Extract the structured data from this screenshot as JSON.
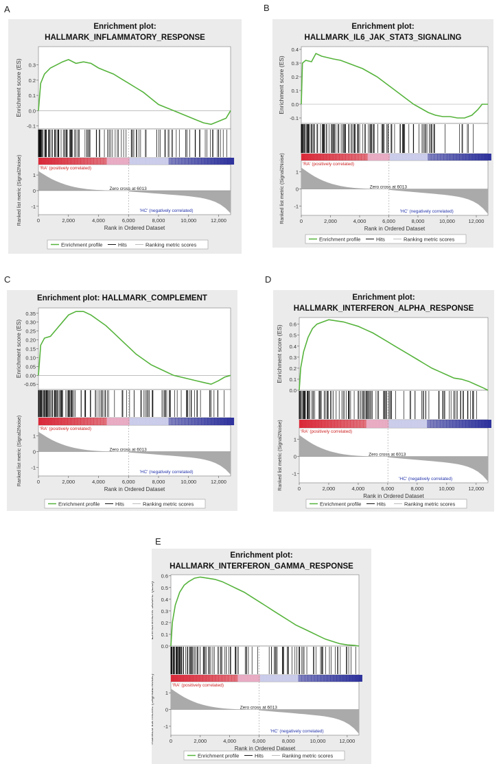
{
  "colors": {
    "es_line": "#55b33b",
    "hits": "#111111",
    "metric_fill": "#aaaaaa",
    "pos_label": "#cc2222",
    "neg_label": "#2233aa",
    "bar_red": "#d92a3a",
    "bar_pink": "#e8a5bf",
    "bar_light_blue": "#c6c8ea",
    "bar_blue": "#2b2f9a",
    "panel_bg": "#ebebeb",
    "plot_bg": "#ffffff"
  },
  "legend": {
    "enrichment_profile": "Enrichment profile",
    "hits": "Hits",
    "ranking_metric": "Ranking metric scores"
  },
  "common": {
    "es_ylabel": "Enrichment score (ES)",
    "metric_ylabel": "Ranked list metric (Signal2Noise)",
    "xlabel": "Rank in Ordered Dataset",
    "pos_label": "'RA' (positively correlated)",
    "neg_label": "'HC' (negatively correlated)",
    "zero_cross": "Zero cross at 6013",
    "x_ticks": [
      "0",
      "2,000",
      "4,000",
      "6,000",
      "8,000",
      "10,000",
      "12,000"
    ],
    "metric_ticks": [
      "1",
      "0",
      "-1"
    ]
  },
  "chart_data": [
    {
      "panel_letter": "A",
      "type": "line",
      "title_lines": [
        "Enrichment plot:",
        "HALLMARK_INFLAMMATORY_RESPONSE"
      ],
      "xlim": [
        0,
        12800
      ],
      "ylim": [
        -0.12,
        0.42
      ],
      "y_ticks": [
        0.3,
        0.2,
        0.1,
        0.0,
        -0.1
      ],
      "y_tick_labels": [
        "0.3",
        "0.2",
        "0.1",
        "0.0",
        "-0.1"
      ],
      "series": [
        {
          "name": "Enrichment profile",
          "points": [
            [
              0,
              0.0
            ],
            [
              150,
              0.18
            ],
            [
              400,
              0.24
            ],
            [
              800,
              0.28
            ],
            [
              1200,
              0.3
            ],
            [
              1600,
              0.32
            ],
            [
              2000,
              0.335
            ],
            [
              2500,
              0.31
            ],
            [
              3000,
              0.32
            ],
            [
              3500,
              0.31
            ],
            [
              4000,
              0.28
            ],
            [
              4500,
              0.26
            ],
            [
              5000,
              0.24
            ],
            [
              5500,
              0.21
            ],
            [
              6000,
              0.18
            ],
            [
              6500,
              0.15
            ],
            [
              7000,
              0.12
            ],
            [
              7500,
              0.08
            ],
            [
              8000,
              0.04
            ],
            [
              8500,
              0.02
            ],
            [
              9000,
              0.0
            ],
            [
              9500,
              -0.02
            ],
            [
              10000,
              -0.04
            ],
            [
              10500,
              -0.06
            ],
            [
              11000,
              -0.08
            ],
            [
              11500,
              -0.09
            ],
            [
              12000,
              -0.07
            ],
            [
              12500,
              -0.05
            ],
            [
              12800,
              0.0
            ]
          ]
        }
      ],
      "metric_ylim": [
        -1.6,
        1.6
      ],
      "zero_cross_rank": 6013
    },
    {
      "panel_letter": "B",
      "type": "line",
      "title_lines": [
        "Enrichment plot:",
        "HALLMARK_IL6_JAK_STAT3_SIGNALING"
      ],
      "xlim": [
        0,
        12800
      ],
      "ylim": [
        -0.14,
        0.42
      ],
      "y_ticks": [
        0.4,
        0.3,
        0.2,
        0.1,
        0.0,
        -0.1
      ],
      "y_tick_labels": [
        "0.4",
        "0.3",
        "0.2",
        "0.1",
        "0.0",
        "-0.1"
      ],
      "series": [
        {
          "name": "Enrichment profile",
          "points": [
            [
              0,
              0.0
            ],
            [
              80,
              0.3
            ],
            [
              300,
              0.32
            ],
            [
              700,
              0.31
            ],
            [
              1000,
              0.37
            ],
            [
              1400,
              0.35
            ],
            [
              1800,
              0.34
            ],
            [
              2200,
              0.33
            ],
            [
              2700,
              0.32
            ],
            [
              3200,
              0.3
            ],
            [
              3700,
              0.28
            ],
            [
              4200,
              0.26
            ],
            [
              4700,
              0.23
            ],
            [
              5200,
              0.2
            ],
            [
              5700,
              0.16
            ],
            [
              6200,
              0.12
            ],
            [
              6700,
              0.08
            ],
            [
              7200,
              0.04
            ],
            [
              7700,
              0.0
            ],
            [
              8200,
              -0.03
            ],
            [
              8700,
              -0.06
            ],
            [
              9200,
              -0.08
            ],
            [
              9700,
              -0.09
            ],
            [
              10200,
              -0.09
            ],
            [
              10700,
              -0.1
            ],
            [
              11200,
              -0.1
            ],
            [
              11700,
              -0.08
            ],
            [
              12100,
              -0.04
            ],
            [
              12400,
              0.0
            ],
            [
              12800,
              0.0
            ]
          ]
        }
      ],
      "metric_ylim": [
        -1.6,
        1.6
      ],
      "zero_cross_rank": 6013
    },
    {
      "panel_letter": "C",
      "type": "line",
      "title_lines": [
        "Enrichment plot: HALLMARK_COMPLEMENT"
      ],
      "xlim": [
        0,
        12800
      ],
      "ylim": [
        -0.08,
        0.38
      ],
      "y_ticks": [
        0.35,
        0.3,
        0.25,
        0.2,
        0.15,
        0.1,
        0.05,
        0.0,
        -0.05
      ],
      "y_tick_labels": [
        "0.35",
        "0.30",
        "0.25",
        "0.20",
        "0.15",
        "0.10",
        "0.05",
        "0.00",
        "-0.05"
      ],
      "series": [
        {
          "name": "Enrichment profile",
          "points": [
            [
              0,
              0.0
            ],
            [
              150,
              0.17
            ],
            [
              400,
              0.21
            ],
            [
              800,
              0.22
            ],
            [
              1200,
              0.26
            ],
            [
              1600,
              0.3
            ],
            [
              2000,
              0.34
            ],
            [
              2500,
              0.36
            ],
            [
              3000,
              0.36
            ],
            [
              3500,
              0.34
            ],
            [
              4000,
              0.31
            ],
            [
              4500,
              0.28
            ],
            [
              5000,
              0.24
            ],
            [
              5500,
              0.2
            ],
            [
              6000,
              0.16
            ],
            [
              6500,
              0.12
            ],
            [
              7000,
              0.09
            ],
            [
              7500,
              0.06
            ],
            [
              8000,
              0.04
            ],
            [
              8500,
              0.02
            ],
            [
              9000,
              0.0
            ],
            [
              9500,
              -0.01
            ],
            [
              10000,
              -0.02
            ],
            [
              10500,
              -0.03
            ],
            [
              11000,
              -0.04
            ],
            [
              11500,
              -0.05
            ],
            [
              12000,
              -0.03
            ],
            [
              12400,
              -0.01
            ],
            [
              12800,
              0.0
            ]
          ]
        }
      ],
      "metric_ylim": [
        -1.6,
        1.6
      ],
      "zero_cross_rank": 6013
    },
    {
      "panel_letter": "D",
      "type": "line",
      "title_lines": [
        "Enrichment plot:",
        "HALLMARK_INTERFERON_ALPHA_RESPONSE"
      ],
      "xlim": [
        0,
        12800
      ],
      "ylim": [
        0.0,
        0.66
      ],
      "y_ticks": [
        0.6,
        0.5,
        0.4,
        0.3,
        0.2,
        0.1,
        0.0
      ],
      "y_tick_labels": [
        "0.6",
        "0.5",
        "0.4",
        "0.3",
        "0.2",
        "0.1",
        "0.0"
      ],
      "series": [
        {
          "name": "Enrichment profile",
          "points": [
            [
              0,
              0.0
            ],
            [
              100,
              0.2
            ],
            [
              300,
              0.35
            ],
            [
              600,
              0.48
            ],
            [
              900,
              0.56
            ],
            [
              1200,
              0.6
            ],
            [
              1600,
              0.62
            ],
            [
              2000,
              0.64
            ],
            [
              2500,
              0.63
            ],
            [
              3000,
              0.62
            ],
            [
              3500,
              0.6
            ],
            [
              4000,
              0.58
            ],
            [
              4500,
              0.55
            ],
            [
              5000,
              0.52
            ],
            [
              5500,
              0.48
            ],
            [
              6000,
              0.44
            ],
            [
              6500,
              0.4
            ],
            [
              7000,
              0.36
            ],
            [
              7500,
              0.32
            ],
            [
              8000,
              0.28
            ],
            [
              8500,
              0.24
            ],
            [
              9000,
              0.2
            ],
            [
              9500,
              0.17
            ],
            [
              10000,
              0.14
            ],
            [
              10500,
              0.11
            ],
            [
              11000,
              0.1
            ],
            [
              11500,
              0.08
            ],
            [
              12000,
              0.05
            ],
            [
              12500,
              0.02
            ],
            [
              12800,
              0.0
            ]
          ]
        }
      ],
      "metric_ylim": [
        -1.6,
        1.6
      ],
      "zero_cross_rank": 6013
    },
    {
      "panel_letter": "E",
      "type": "line",
      "title_lines": [
        "Enrichment plot:",
        "HALLMARK_INTERFERON_GAMMA_RESPONSE"
      ],
      "xlim": [
        0,
        12800
      ],
      "ylim": [
        0.0,
        0.61
      ],
      "y_ticks": [
        0.6,
        0.5,
        0.4,
        0.3,
        0.2,
        0.1,
        0.0
      ],
      "y_tick_labels": [
        "0.6",
        "0.5",
        "0.4",
        "0.3",
        "0.2",
        "0.1",
        "0.0"
      ],
      "series": [
        {
          "name": "Enrichment profile",
          "points": [
            [
              0,
              0.0
            ],
            [
              100,
              0.2
            ],
            [
              300,
              0.35
            ],
            [
              600,
              0.46
            ],
            [
              900,
              0.52
            ],
            [
              1200,
              0.55
            ],
            [
              1600,
              0.58
            ],
            [
              2000,
              0.59
            ],
            [
              2500,
              0.58
            ],
            [
              3000,
              0.57
            ],
            [
              3500,
              0.55
            ],
            [
              4000,
              0.52
            ],
            [
              4500,
              0.49
            ],
            [
              5000,
              0.46
            ],
            [
              5500,
              0.42
            ],
            [
              6000,
              0.38
            ],
            [
              6500,
              0.34
            ],
            [
              7000,
              0.3
            ],
            [
              7500,
              0.26
            ],
            [
              8000,
              0.22
            ],
            [
              8500,
              0.18
            ],
            [
              9000,
              0.15
            ],
            [
              9500,
              0.12
            ],
            [
              10000,
              0.09
            ],
            [
              10500,
              0.06
            ],
            [
              11000,
              0.04
            ],
            [
              11500,
              0.02
            ],
            [
              12000,
              0.01
            ],
            [
              12500,
              0.005
            ],
            [
              12800,
              0.0
            ]
          ]
        }
      ],
      "metric_ylim": [
        -1.6,
        1.6
      ],
      "zero_cross_rank": 6013
    }
  ]
}
